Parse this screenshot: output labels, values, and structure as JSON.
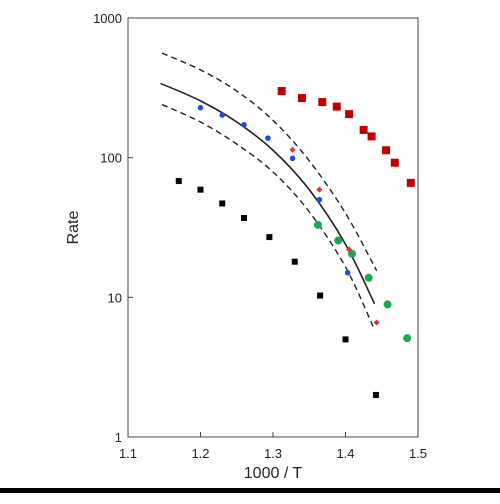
{
  "chart_data": {
    "type": "scatter",
    "title": "",
    "xlabel": "1000 / T",
    "ylabel": "Rate",
    "xlim": [
      1.1,
      1.5
    ],
    "ylim": [
      1,
      1000
    ],
    "yscale": "log",
    "grid": false,
    "legend": "none",
    "xticks": [
      "1.1",
      "1.2",
      "1.3",
      "1.4",
      "1.5"
    ],
    "yticks": [
      "1",
      "10",
      "100",
      "1000"
    ],
    "series": [
      {
        "marker": "square",
        "color": "#000000",
        "points": [
          {
            "x": 1.17,
            "y": 68
          },
          {
            "x": 1.2,
            "y": 59
          },
          {
            "x": 1.23,
            "y": 47
          },
          {
            "x": 1.26,
            "y": 37
          },
          {
            "x": 1.295,
            "y": 27
          },
          {
            "x": 1.33,
            "y": 18
          },
          {
            "x": 1.365,
            "y": 10.3
          },
          {
            "x": 1.4,
            "y": 5
          },
          {
            "x": 1.442,
            "y": 2
          }
        ]
      },
      {
        "marker": "square",
        "color": "#c00000",
        "points": [
          {
            "x": 1.312,
            "y": 300
          },
          {
            "x": 1.34,
            "y": 267
          },
          {
            "x": 1.368,
            "y": 250
          },
          {
            "x": 1.388,
            "y": 232
          },
          {
            "x": 1.405,
            "y": 205
          },
          {
            "x": 1.425,
            "y": 158
          },
          {
            "x": 1.436,
            "y": 142
          },
          {
            "x": 1.456,
            "y": 113
          },
          {
            "x": 1.468,
            "y": 92
          },
          {
            "x": 1.49,
            "y": 66
          }
        ]
      },
      {
        "marker": "circle",
        "color": "#1f4fd8",
        "points": [
          {
            "x": 1.2,
            "y": 228
          },
          {
            "x": 1.23,
            "y": 202
          },
          {
            "x": 1.26,
            "y": 172
          },
          {
            "x": 1.293,
            "y": 138
          },
          {
            "x": 1.327,
            "y": 99
          },
          {
            "x": 1.364,
            "y": 50
          },
          {
            "x": 1.403,
            "y": 15
          }
        ]
      },
      {
        "marker": "circle",
        "color": "#1aa84d",
        "points": [
          {
            "x": 1.362,
            "y": 33
          },
          {
            "x": 1.39,
            "y": 25.5
          },
          {
            "x": 1.409,
            "y": 20.5
          },
          {
            "x": 1.432,
            "y": 13.8
          },
          {
            "x": 1.458,
            "y": 8.9
          },
          {
            "x": 1.485,
            "y": 5.1
          }
        ]
      },
      {
        "marker": "diamond",
        "color": "#e03030",
        "points": [
          {
            "x": 1.327,
            "y": 114
          },
          {
            "x": 1.364,
            "y": 59
          },
          {
            "x": 1.405,
            "y": 22
          },
          {
            "x": 1.443,
            "y": 6.6
          }
        ]
      }
    ],
    "curves": [
      {
        "style": "solid",
        "color": "#222222",
        "points": [
          {
            "x": 1.145,
            "y": 340
          },
          {
            "x": 1.2,
            "y": 255
          },
          {
            "x": 1.25,
            "y": 180
          },
          {
            "x": 1.3,
            "y": 113
          },
          {
            "x": 1.35,
            "y": 59
          },
          {
            "x": 1.4,
            "y": 24
          },
          {
            "x": 1.44,
            "y": 9
          }
        ]
      },
      {
        "style": "dashed",
        "color": "#222222",
        "points": [
          {
            "x": 1.147,
            "y": 560
          },
          {
            "x": 1.2,
            "y": 425
          },
          {
            "x": 1.25,
            "y": 300
          },
          {
            "x": 1.3,
            "y": 185
          },
          {
            "x": 1.35,
            "y": 95
          },
          {
            "x": 1.4,
            "y": 40
          },
          {
            "x": 1.443,
            "y": 15.5
          }
        ]
      },
      {
        "style": "dashed",
        "color": "#222222",
        "points": [
          {
            "x": 1.147,
            "y": 240
          },
          {
            "x": 1.2,
            "y": 180
          },
          {
            "x": 1.25,
            "y": 125
          },
          {
            "x": 1.3,
            "y": 79
          },
          {
            "x": 1.35,
            "y": 41
          },
          {
            "x": 1.4,
            "y": 16.5
          },
          {
            "x": 1.438,
            "y": 6.2
          }
        ]
      }
    ]
  }
}
